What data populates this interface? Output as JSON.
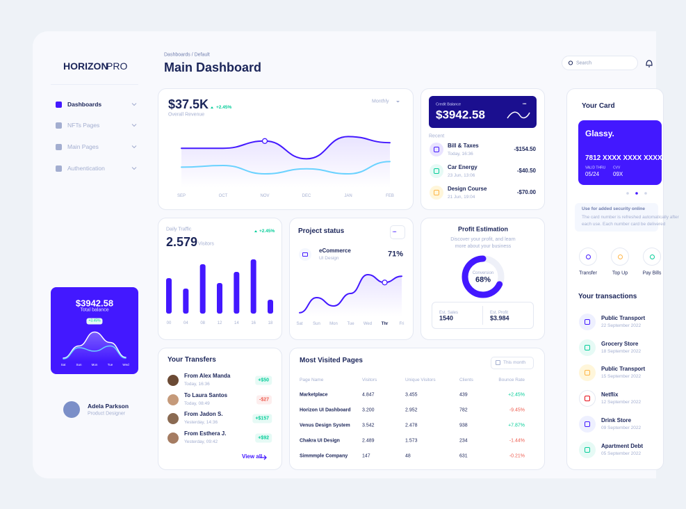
{
  "sidebar": {
    "brand": "HORIZON",
    "brand_suffix": "PRO",
    "nav": [
      "Dashboards",
      "NFTs Pages",
      "Main Pages",
      "Authentication"
    ],
    "balance_card": {
      "amount": "$3942.58",
      "label": "Total balance",
      "change": "+3.45%",
      "chart": {
        "type": "line",
        "categories": [
          "Sat",
          "Sun",
          "Mon",
          "Tue",
          "Wed"
        ],
        "ylim": [
          0,
          100
        ],
        "series": [
          {
            "color": "#ffffff",
            "values": [
              10,
              45,
              85,
              55,
              12
            ]
          },
          {
            "color": "#6ad2ff",
            "values": [
              8,
              40,
              30,
              45,
              10
            ]
          }
        ]
      }
    },
    "profile": {
      "name": "Adela Parkson",
      "role": "Product Designer"
    }
  },
  "header": {
    "breadcrumb": "Dashboards / Default",
    "title": "Main Dashboard",
    "search": "Search"
  },
  "revenue": {
    "amount": "$37.5K",
    "change": "+2.45%",
    "label": "Overall Revenue",
    "period": "Monthly",
    "chart": {
      "type": "line",
      "categories": [
        "SEP",
        "OCT",
        "NOV",
        "DEC",
        "JAN",
        "FEB"
      ],
      "ylim": [
        0,
        100
      ],
      "series": [
        {
          "color": "#4318ff",
          "values": [
            71,
            71,
            84,
            52,
            92,
            81
          ]
        },
        {
          "color": "#6ad2ff",
          "values": [
            37,
            40,
            25,
            34,
            25,
            47
          ]
        }
      ]
    }
  },
  "credit": {
    "label": "Credit Balance",
    "amount": "$3942.58",
    "recent_label": "Recent",
    "items": [
      {
        "name": "Bill & Taxes",
        "date": "Today, 16:36",
        "amount": "-$154.50"
      },
      {
        "name": "Car Energy",
        "date": "23 Jun, 13:06",
        "amount": "-$40.50"
      },
      {
        "name": "Design Course",
        "date": "21 Jun, 19:04",
        "amount": "-$70.00"
      }
    ]
  },
  "traffic": {
    "label": "Daily Traffic",
    "value": "2.579",
    "unit": "Visitors",
    "change": "+2.45%",
    "chart": {
      "type": "bar",
      "categories": [
        "00",
        "04",
        "08",
        "12",
        "14",
        "16",
        "18"
      ],
      "values": [
        51,
        36,
        71,
        44,
        60,
        78,
        20
      ],
      "color": "#4318ff",
      "ylim": [
        0,
        80
      ]
    }
  },
  "project": {
    "title": "Project status",
    "item_name": "eCommerce",
    "item_sub": "UI Design",
    "item_value": "71%",
    "chart": {
      "type": "line",
      "categories": [
        "Sat",
        "Sun",
        "Mon",
        "Tue",
        "Wed",
        "Thr",
        "Fri"
      ],
      "ylim": [
        0,
        100
      ],
      "series": [
        {
          "color": "#4318ff",
          "values": [
            7,
            36,
            20,
            44,
            80,
            65,
            77
          ]
        }
      ]
    }
  },
  "profit": {
    "title": "Profit Estimation",
    "description": "Discover your profit, and learn more about your business",
    "conversion_label": "Conversion",
    "conversion_value": 68,
    "conversion_text": "68%",
    "sales_label": "Est. Sales",
    "sales": "1540",
    "profit_label": "Est. Profit",
    "profit": "$3.984"
  },
  "transfers": {
    "title": "Your Transfers",
    "view_all": "View all",
    "items": [
      {
        "name": "From Alex Manda",
        "date": "Today, 16:36",
        "amount": "+$50"
      },
      {
        "name": "To Laura Santos",
        "date": "Today, 08:49",
        "amount": "-$27"
      },
      {
        "name": "From Jadon S.",
        "date": "Yesterday, 14:36",
        "amount": "+$157"
      },
      {
        "name": "From Esthera J.",
        "date": "Yesterday, 09:42",
        "amount": "+$92"
      }
    ]
  },
  "visited": {
    "title": "Most Visited Pages",
    "period": "This month",
    "table": {
      "columns": [
        "Page Name",
        "Visitors",
        "Unique Visitors",
        "Clients",
        "Bounce Rate"
      ],
      "rows": [
        [
          "Marketplace",
          "4.847",
          "3.455",
          "439",
          "+2.45%"
        ],
        [
          "Horizon UI Dashboard",
          "3.200",
          "2.952",
          "782",
          "-9.45%"
        ],
        [
          "Venus Design System",
          "3.542",
          "2.478",
          "938",
          "+7.87%"
        ],
        [
          "Chakra UI Design",
          "2.489",
          "1.573",
          "234",
          "-1.44%"
        ],
        [
          "Simmmple Company",
          "147",
          "48",
          "631",
          "-0.21%"
        ]
      ]
    }
  },
  "wallet": {
    "title": "Your Card",
    "card": {
      "brand": "Glassy.",
      "number": "7812 XXXX XXXX XXXX",
      "valid_label": "VALID THRU",
      "valid": "05/24",
      "cvv_label": "CVV",
      "cvv": "09X"
    },
    "security_title": "Use for added security online",
    "security_text": "The card number is refreshed automatically after each use. Each number card be delivered",
    "actions": [
      "Transfer",
      "Top Up",
      "Pay Bills"
    ],
    "transactions_title": "Your transactions",
    "transactions": [
      {
        "name": "Public Transport",
        "date": "22 September 2022"
      },
      {
        "name": "Grocery Store",
        "date": "18 September 2022"
      },
      {
        "name": "Public Transport",
        "date": "15 September 2022"
      },
      {
        "name": "Netflix",
        "date": "12 September 2022"
      },
      {
        "name": "Drink Store",
        "date": "09 September 2022"
      },
      {
        "name": "Apartment Debt",
        "date": "05 September 2022"
      }
    ]
  }
}
